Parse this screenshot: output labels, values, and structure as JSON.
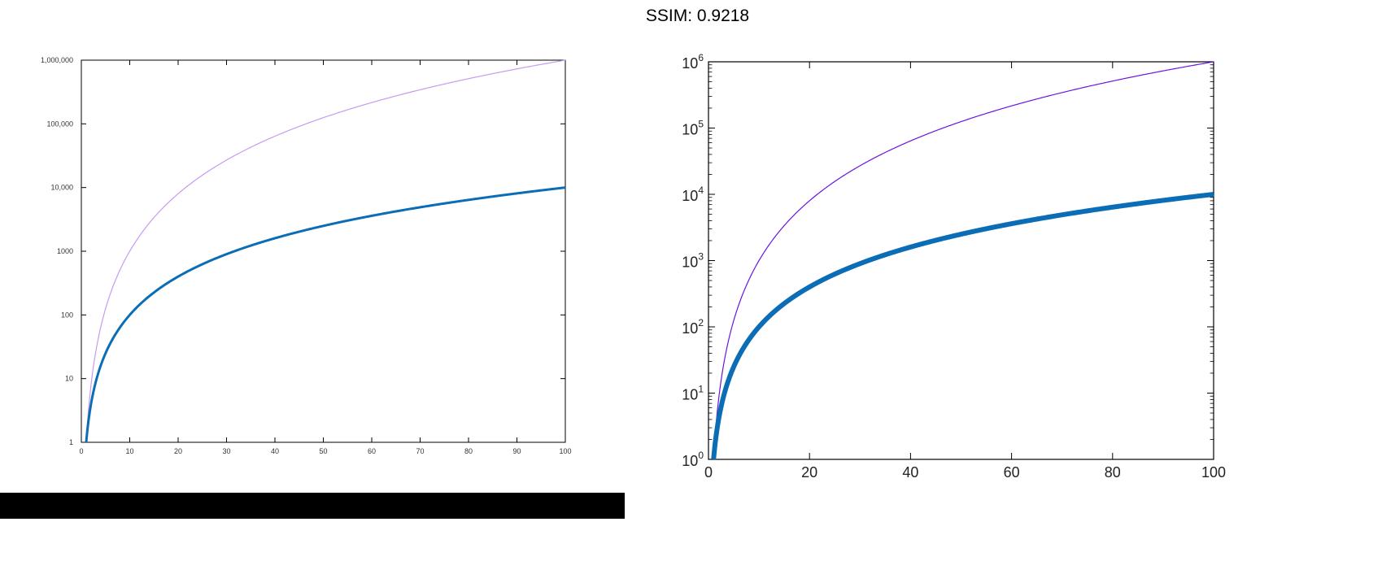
{
  "header": {
    "title": "SSIM: 0.9218"
  },
  "colors": {
    "thick_line": "#0a6db5",
    "thin_line_left": "#c89af0",
    "thin_line_right": "#6a14e0",
    "axis": "#000000"
  },
  "chart_data": [
    {
      "type": "line",
      "title": "",
      "xlabel": "",
      "ylabel": "",
      "yscale": "log",
      "xlim": [
        0,
        100
      ],
      "ylim": [
        1,
        1000000
      ],
      "x_ticks": [
        "0",
        "10",
        "20",
        "30",
        "40",
        "50",
        "60",
        "70",
        "80",
        "90",
        "100"
      ],
      "y_ticks": [
        "1",
        "10",
        "100",
        "1000",
        "10,000",
        "100,000",
        "1,000,000"
      ],
      "grid": false,
      "legend": "none",
      "series": [
        {
          "function": "x^3",
          "x": [
            1,
            2,
            5,
            10,
            20,
            30,
            50,
            70,
            100
          ],
          "y": [
            1,
            8,
            125,
            1000,
            8000,
            27000,
            125000,
            343000,
            1000000
          ]
        },
        {
          "function": "x^2",
          "x": [
            1,
            2,
            5,
            10,
            20,
            30,
            50,
            70,
            100
          ],
          "y": [
            1,
            4,
            25,
            100,
            400,
            900,
            2500,
            4900,
            10000
          ]
        }
      ]
    },
    {
      "type": "line",
      "title": "",
      "xlabel": "",
      "ylabel": "",
      "yscale": "log",
      "xlim": [
        0,
        100
      ],
      "ylim": [
        1,
        1000000
      ],
      "x_ticks": [
        "0",
        "20",
        "40",
        "60",
        "80",
        "100"
      ],
      "y_ticks": [
        {
          "base": "10",
          "exp": "0"
        },
        {
          "base": "10",
          "exp": "1"
        },
        {
          "base": "10",
          "exp": "2"
        },
        {
          "base": "10",
          "exp": "3"
        },
        {
          "base": "10",
          "exp": "4"
        },
        {
          "base": "10",
          "exp": "5"
        },
        {
          "base": "10",
          "exp": "6"
        }
      ],
      "grid": false,
      "legend": "none",
      "series": [
        {
          "function": "x^3",
          "x": [
            1,
            2,
            5,
            10,
            20,
            30,
            50,
            70,
            100
          ],
          "y": [
            1,
            8,
            125,
            1000,
            8000,
            27000,
            125000,
            343000,
            1000000
          ]
        },
        {
          "function": "x^2",
          "x": [
            1,
            2,
            5,
            10,
            20,
            30,
            50,
            70,
            100
          ],
          "y": [
            1,
            4,
            25,
            100,
            400,
            900,
            2500,
            4900,
            10000
          ]
        }
      ]
    }
  ]
}
